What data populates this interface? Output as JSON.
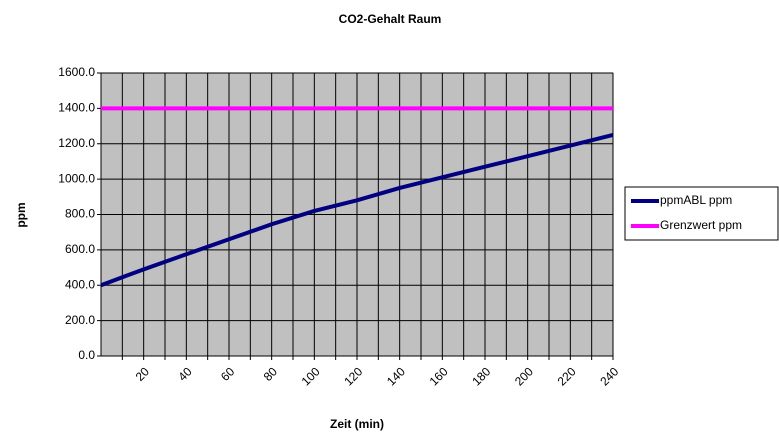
{
  "chart_data": {
    "type": "line",
    "title": "CO2-Gehalt  Raum",
    "x_label": "Zeit (min)",
    "y_label": "ppm",
    "x": [
      0,
      20,
      40,
      60,
      80,
      100,
      120,
      140,
      160,
      180,
      200,
      220,
      240
    ],
    "series": [
      {
        "name": "ppmABL ppm",
        "color": "#000080",
        "values": [
          400,
          490,
          575,
          660,
          745,
          820,
          880,
          950,
          1010,
          1070,
          1130,
          1190,
          1250
        ]
      },
      {
        "name": "Grenzwert ppm",
        "color": "#ff00ff",
        "values": [
          1400,
          1400,
          1400,
          1400,
          1400,
          1400,
          1400,
          1400,
          1400,
          1400,
          1400,
          1400,
          1400
        ]
      }
    ],
    "xlim": [
      0,
      240
    ],
    "xticks": [
      20,
      40,
      60,
      80,
      100,
      120,
      140,
      160,
      180,
      200,
      220,
      240
    ],
    "xminor": [
      10,
      30,
      50,
      70,
      90,
      110,
      130,
      150,
      170,
      190,
      210,
      230
    ],
    "ylim": [
      0,
      1600
    ],
    "yticks": [
      {
        "value": 0,
        "label": "0.0"
      },
      {
        "value": 200,
        "label": "200.0"
      },
      {
        "value": 400,
        "label": "400.0"
      },
      {
        "value": 600,
        "label": "600.0"
      },
      {
        "value": 800,
        "label": "800.0"
      },
      {
        "value": 1000,
        "label": "1000.0"
      },
      {
        "value": 1200,
        "label": "1200.0"
      },
      {
        "value": 1400,
        "label": "1400.0"
      },
      {
        "value": 1600,
        "label": "1600.0"
      }
    ],
    "grid": true,
    "legend": "right"
  }
}
